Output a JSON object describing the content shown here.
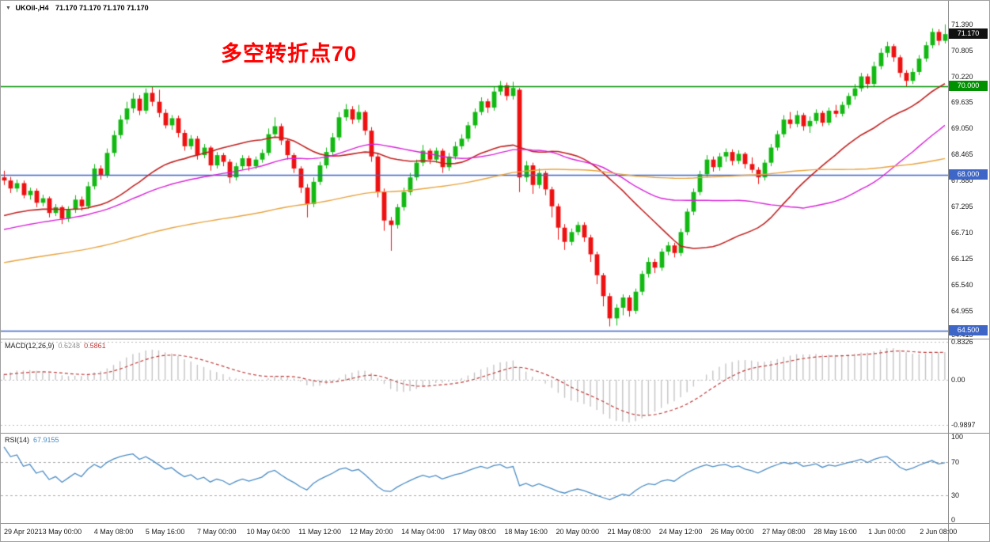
{
  "window": {
    "symbol_period": "UKOil-,H4",
    "ohlc_quote": "71.170 71.170 71.170 71.170"
  },
  "main_chart": {
    "annotation": "多空转折点70",
    "annotation_color": "#FF0000",
    "current_price": "71.170",
    "current_price_value": 71.17,
    "current_price_bg": "#111111",
    "price_axis_labels": [
      "71.390",
      "70.805",
      "70.220",
      "69.635",
      "69.050",
      "68.465",
      "67.880",
      "67.295",
      "66.710",
      "66.125",
      "65.540",
      "64.955",
      "64.415"
    ],
    "levels": [
      {
        "label": "70.000",
        "value": 70.0,
        "color": "#009100"
      },
      {
        "label": "68.000",
        "value": 68.0,
        "color": "#3e66c6"
      },
      {
        "label": "64.500",
        "value": 64.5,
        "color": "#3e66c6"
      }
    ]
  },
  "macd": {
    "label": "MACD(12,26,9)",
    "value_main": "0.6248",
    "value_signal": "0.5861",
    "axis_labels": [
      "0.8326",
      "0.00",
      "-0.9897"
    ],
    "histogram_color": "#c4c4c4",
    "signal_color": "#c03a3a"
  },
  "rsi": {
    "label": "RSI(14)",
    "value": "67.9155",
    "axis_labels": [
      "100",
      "70",
      "30",
      "0"
    ],
    "levels": [
      70,
      30
    ],
    "line_color": "#4a8bc4"
  },
  "chart_data": {
    "type": "candlestick",
    "symbol": "UKOil-",
    "timeframe": "H4",
    "title": "UKOil-,H4 71.170 71.170 71.170 71.170",
    "price_scale": {
      "max": 71.6,
      "min": 64.36
    },
    "style": {
      "up_color": "#12b912",
      "down_color": "#ee1111"
    },
    "moving_averages": [
      {
        "period": 26,
        "color": "#c22020",
        "width": 1.6
      },
      {
        "period": 45,
        "color": "#d920d9",
        "width": 1.4
      },
      {
        "period": 110,
        "color": "#e8a33d",
        "width": 1.4
      }
    ],
    "time_labels": [
      "29 Apr 2021",
      "3 May 00:00",
      "4 May 08:00",
      "5 May 16:00",
      "7 May 00:00",
      "10 May 04:00",
      "11 May 12:00",
      "12 May 20:00",
      "14 May 04:00",
      "17 May 08:00",
      "18 May 16:00",
      "20 May 00:00",
      "21 May 08:00",
      "24 May 12:00",
      "26 May 00:00",
      "27 May 08:00",
      "28 May 16:00",
      "1 Jun 00:00",
      "2 Jun 08:00"
    ],
    "time_label_first_bar": 1,
    "time_label_bar_step": 8,
    "candles": [
      [
        67.95,
        68.1,
        67.78,
        67.88
      ],
      [
        67.88,
        67.96,
        67.6,
        67.7
      ],
      [
        67.7,
        67.9,
        67.62,
        67.82
      ],
      [
        67.82,
        67.88,
        67.48,
        67.55
      ],
      [
        67.55,
        67.72,
        67.45,
        67.65
      ],
      [
        67.65,
        67.7,
        67.28,
        67.38
      ],
      [
        67.38,
        67.56,
        67.3,
        67.48
      ],
      [
        67.48,
        67.52,
        67.05,
        67.15
      ],
      [
        67.15,
        67.35,
        67.08,
        67.28
      ],
      [
        67.28,
        67.32,
        66.9,
        67.02
      ],
      [
        67.02,
        67.3,
        66.95,
        67.22
      ],
      [
        67.22,
        67.55,
        67.15,
        67.45
      ],
      [
        67.45,
        67.52,
        67.2,
        67.3
      ],
      [
        67.3,
        67.85,
        67.24,
        67.75
      ],
      [
        67.75,
        68.25,
        67.68,
        68.15
      ],
      [
        68.15,
        68.22,
        67.9,
        68.0
      ],
      [
        68.0,
        68.6,
        67.94,
        68.5
      ],
      [
        68.5,
        69.0,
        68.42,
        68.9
      ],
      [
        68.9,
        69.35,
        68.82,
        69.25
      ],
      [
        69.25,
        69.65,
        69.15,
        69.5
      ],
      [
        69.5,
        69.85,
        69.4,
        69.72
      ],
      [
        69.72,
        69.8,
        69.35,
        69.45
      ],
      [
        69.45,
        69.95,
        69.38,
        69.85
      ],
      [
        69.85,
        69.98,
        69.55,
        69.65
      ],
      [
        69.65,
        69.92,
        69.3,
        69.4
      ],
      [
        69.4,
        69.48,
        69.05,
        69.12
      ],
      [
        69.12,
        69.35,
        69.02,
        69.28
      ],
      [
        69.28,
        69.34,
        68.85,
        68.95
      ],
      [
        68.95,
        69.02,
        68.55,
        68.65
      ],
      [
        68.65,
        68.9,
        68.58,
        68.82
      ],
      [
        68.82,
        68.88,
        68.35,
        68.45
      ],
      [
        68.45,
        68.7,
        68.38,
        68.62
      ],
      [
        68.62,
        68.66,
        68.1,
        68.22
      ],
      [
        68.22,
        68.52,
        68.15,
        68.45
      ],
      [
        68.45,
        68.5,
        68.2,
        68.3
      ],
      [
        68.3,
        68.36,
        67.82,
        67.95
      ],
      [
        67.95,
        68.28,
        67.88,
        68.2
      ],
      [
        68.2,
        68.45,
        68.12,
        68.38
      ],
      [
        68.38,
        68.44,
        68.1,
        68.2
      ],
      [
        68.2,
        68.42,
        68.14,
        68.35
      ],
      [
        68.35,
        68.58,
        68.28,
        68.5
      ],
      [
        68.5,
        69.05,
        68.44,
        68.92
      ],
      [
        68.92,
        69.3,
        68.85,
        69.1
      ],
      [
        69.1,
        69.16,
        68.68,
        68.78
      ],
      [
        68.78,
        68.82,
        68.35,
        68.45
      ],
      [
        68.45,
        68.5,
        68.05,
        68.15
      ],
      [
        68.15,
        68.2,
        67.6,
        67.72
      ],
      [
        67.72,
        67.8,
        67.05,
        67.35
      ],
      [
        67.35,
        67.95,
        67.28,
        67.85
      ],
      [
        67.85,
        68.3,
        67.78,
        68.22
      ],
      [
        68.22,
        68.62,
        68.15,
        68.52
      ],
      [
        68.52,
        68.95,
        68.45,
        68.85
      ],
      [
        68.85,
        69.42,
        68.78,
        69.3
      ],
      [
        69.3,
        69.6,
        69.22,
        69.48
      ],
      [
        69.48,
        69.55,
        69.15,
        69.25
      ],
      [
        69.25,
        69.58,
        69.18,
        69.42
      ],
      [
        69.42,
        69.46,
        68.9,
        69.0
      ],
      [
        69.0,
        69.08,
        68.3,
        68.42
      ],
      [
        68.42,
        68.48,
        67.5,
        67.62
      ],
      [
        67.62,
        67.7,
        66.75,
        66.98
      ],
      [
        66.98,
        67.06,
        66.3,
        66.88
      ],
      [
        66.88,
        67.35,
        66.8,
        67.28
      ],
      [
        67.28,
        67.72,
        67.2,
        67.62
      ],
      [
        67.62,
        68.05,
        67.55,
        67.95
      ],
      [
        67.95,
        68.35,
        67.88,
        68.28
      ],
      [
        68.28,
        68.68,
        68.2,
        68.55
      ],
      [
        68.55,
        68.6,
        68.25,
        68.35
      ],
      [
        68.35,
        68.62,
        68.28,
        68.55
      ],
      [
        68.55,
        68.6,
        68.05,
        68.18
      ],
      [
        68.18,
        68.5,
        68.1,
        68.42
      ],
      [
        68.42,
        68.75,
        68.35,
        68.65
      ],
      [
        68.65,
        68.92,
        68.58,
        68.82
      ],
      [
        68.82,
        69.2,
        68.75,
        69.12
      ],
      [
        69.12,
        69.5,
        69.05,
        69.42
      ],
      [
        69.42,
        69.75,
        69.35,
        69.66
      ],
      [
        69.66,
        69.72,
        69.4,
        69.52
      ],
      [
        69.52,
        69.98,
        69.45,
        69.88
      ],
      [
        69.88,
        70.12,
        69.8,
        70.02
      ],
      [
        70.02,
        70.08,
        69.68,
        69.78
      ],
      [
        69.78,
        70.1,
        69.7,
        69.96
      ],
      [
        69.92,
        69.96,
        67.62,
        67.95
      ],
      [
        67.95,
        68.32,
        67.85,
        68.22
      ],
      [
        68.22,
        68.28,
        67.58,
        67.78
      ],
      [
        67.78,
        68.15,
        67.7,
        68.05
      ],
      [
        68.05,
        68.1,
        67.55,
        67.68
      ],
      [
        67.68,
        67.74,
        67.05,
        67.3
      ],
      [
        67.3,
        67.36,
        66.55,
        66.82
      ],
      [
        66.82,
        66.9,
        66.32,
        66.5
      ],
      [
        66.5,
        66.8,
        66.42,
        66.72
      ],
      [
        66.72,
        66.95,
        66.65,
        66.88
      ],
      [
        66.88,
        66.94,
        66.5,
        66.6
      ],
      [
        66.6,
        66.66,
        66.05,
        66.22
      ],
      [
        66.22,
        66.28,
        65.55,
        65.75
      ],
      [
        65.75,
        65.8,
        65.05,
        65.28
      ],
      [
        65.28,
        65.35,
        64.6,
        64.78
      ],
      [
        64.78,
        65.1,
        64.62,
        65.02
      ],
      [
        65.02,
        65.32,
        64.85,
        65.25
      ],
      [
        65.25,
        65.3,
        64.82,
        64.95
      ],
      [
        64.95,
        65.45,
        64.88,
        65.38
      ],
      [
        65.38,
        65.85,
        65.3,
        65.78
      ],
      [
        65.78,
        66.15,
        65.7,
        66.05
      ],
      [
        66.05,
        66.12,
        65.8,
        65.92
      ],
      [
        65.92,
        66.35,
        65.85,
        66.28
      ],
      [
        66.28,
        66.5,
        66.2,
        66.42
      ],
      [
        66.42,
        66.48,
        66.15,
        66.25
      ],
      [
        66.25,
        66.8,
        66.18,
        66.72
      ],
      [
        66.72,
        67.25,
        66.65,
        67.18
      ],
      [
        67.18,
        67.7,
        67.1,
        67.62
      ],
      [
        67.62,
        68.1,
        67.55,
        68.02
      ],
      [
        68.02,
        68.45,
        67.95,
        68.35
      ],
      [
        68.35,
        68.42,
        68.08,
        68.18
      ],
      [
        68.18,
        68.5,
        68.1,
        68.42
      ],
      [
        68.42,
        68.6,
        68.3,
        68.52
      ],
      [
        68.52,
        68.58,
        68.22,
        68.32
      ],
      [
        68.32,
        68.56,
        68.25,
        68.48
      ],
      [
        68.48,
        68.52,
        68.15,
        68.25
      ],
      [
        68.25,
        68.4,
        68.05,
        68.12
      ],
      [
        68.12,
        68.18,
        67.8,
        67.95
      ],
      [
        67.95,
        68.35,
        67.88,
        68.28
      ],
      [
        68.28,
        68.7,
        68.2,
        68.62
      ],
      [
        68.62,
        69.0,
        68.55,
        68.92
      ],
      [
        68.92,
        69.35,
        68.85,
        69.25
      ],
      [
        69.25,
        69.42,
        69.05,
        69.15
      ],
      [
        69.15,
        69.45,
        69.08,
        69.35
      ],
      [
        69.35,
        69.4,
        69.0,
        69.1
      ],
      [
        69.1,
        69.32,
        68.95,
        69.22
      ],
      [
        69.22,
        69.48,
        69.15,
        69.4
      ],
      [
        69.4,
        69.45,
        69.1,
        69.18
      ],
      [
        69.18,
        69.52,
        69.12,
        69.45
      ],
      [
        69.45,
        69.58,
        69.3,
        69.38
      ],
      [
        69.38,
        69.65,
        69.32,
        69.58
      ],
      [
        69.58,
        69.85,
        69.5,
        69.78
      ],
      [
        69.78,
        70.05,
        69.7,
        69.95
      ],
      [
        69.95,
        70.3,
        69.88,
        70.22
      ],
      [
        70.22,
        70.28,
        69.95,
        70.05
      ],
      [
        70.05,
        70.55,
        69.98,
        70.45
      ],
      [
        70.45,
        70.85,
        70.38,
        70.75
      ],
      [
        70.75,
        71.0,
        70.65,
        70.9
      ],
      [
        70.9,
        70.95,
        70.55,
        70.65
      ],
      [
        70.65,
        70.7,
        70.2,
        70.3
      ],
      [
        70.3,
        70.36,
        70.0,
        70.12
      ],
      [
        70.12,
        70.4,
        70.05,
        70.32
      ],
      [
        70.32,
        70.7,
        70.25,
        70.62
      ],
      [
        70.62,
        71.0,
        70.55,
        70.92
      ],
      [
        70.92,
        71.3,
        70.85,
        71.22
      ],
      [
        71.22,
        71.28,
        70.92,
        71.02
      ],
      [
        71.02,
        71.39,
        70.96,
        71.17
      ]
    ]
  }
}
